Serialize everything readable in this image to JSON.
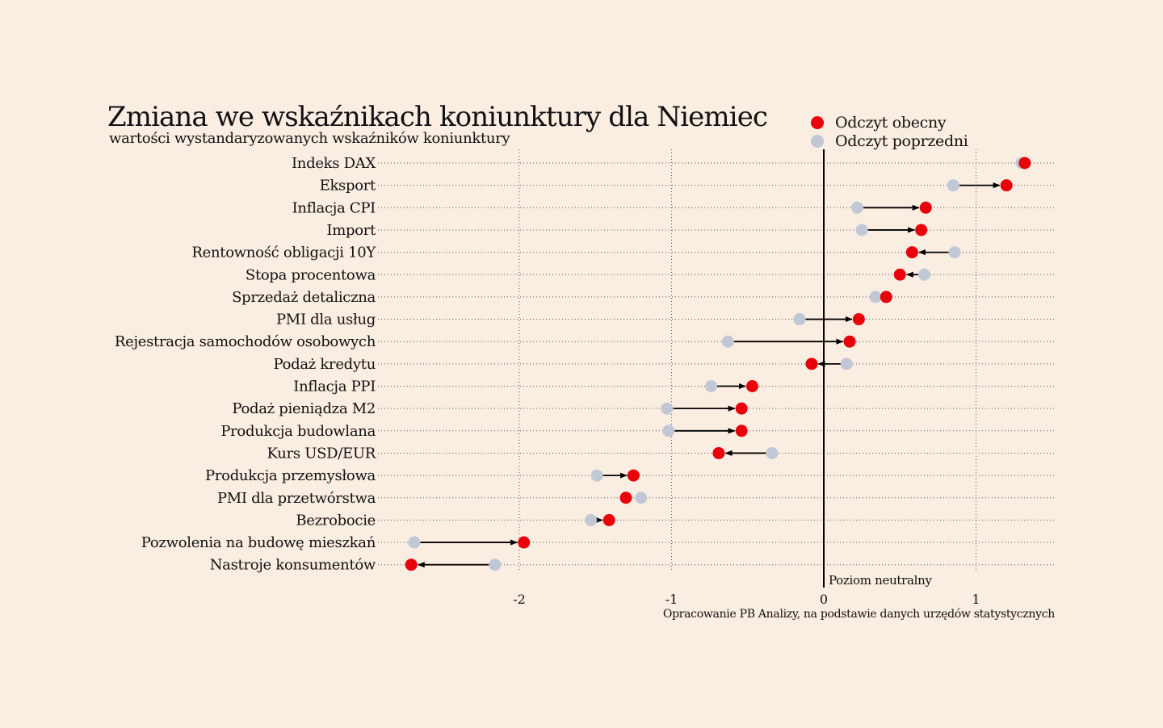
{
  "colors": {
    "background": "#faede1",
    "current": "#e8000b",
    "previous": "#c0c8d6",
    "arrow": "#000000"
  },
  "chart_data": {
    "type": "dumbbell",
    "title": "Zmiana we wskaźnikach koniunktury dla Niemiec",
    "subtitle": "wartości wystandaryzowanych wskaźników koniunktury",
    "source": "Opracowanie PB Analizy, na podstawie danych urzędów statystycznych",
    "neutral_label": "Poziom neutralny",
    "xlim": [
      -2.8,
      1.5
    ],
    "xticks": [
      -2,
      -1,
      0,
      1
    ],
    "xtick_labels": [
      "-2",
      "-1",
      "0",
      "1"
    ],
    "grid": true,
    "legend": {
      "placement": "top-right",
      "current_label": "Odczyt obecny",
      "previous_label": "Odczyt poprzedni"
    },
    "categories": [
      "Indeks DAX",
      "Eksport",
      "Inflacja CPI",
      "Import",
      "Rentowność obligacji 10Y",
      "Stopa procentowa",
      "Sprzedaż detaliczna",
      "PMI dla usług",
      "Rejestracja samochodów osobowych",
      "Podaż kredytu",
      "Inflacja PPI",
      "Podaż pieniądza M2",
      "Produkcja budowlana",
      "Kurs USD/EUR",
      "Produkcja przemysłowa",
      "PMI dla przetwórstwa",
      "Bezrobocie",
      "Pozwolenia na budowę mieszkań",
      "Nastroje konsumentów"
    ],
    "series": [
      {
        "name": "Odczyt obecny",
        "values": [
          1.32,
          1.2,
          0.67,
          0.64,
          0.58,
          0.5,
          0.41,
          0.23,
          0.17,
          -0.08,
          -0.47,
          -0.54,
          -0.54,
          -0.69,
          -1.25,
          -1.3,
          -1.41,
          -1.97,
          -2.71
        ]
      },
      {
        "name": "Odczyt poprzedni",
        "values": [
          1.3,
          0.85,
          0.22,
          0.25,
          0.86,
          0.66,
          0.34,
          -0.16,
          -0.63,
          0.15,
          -0.74,
          -1.03,
          -1.02,
          -0.34,
          -1.49,
          -1.2,
          -1.53,
          -2.69,
          -2.16
        ]
      }
    ]
  }
}
